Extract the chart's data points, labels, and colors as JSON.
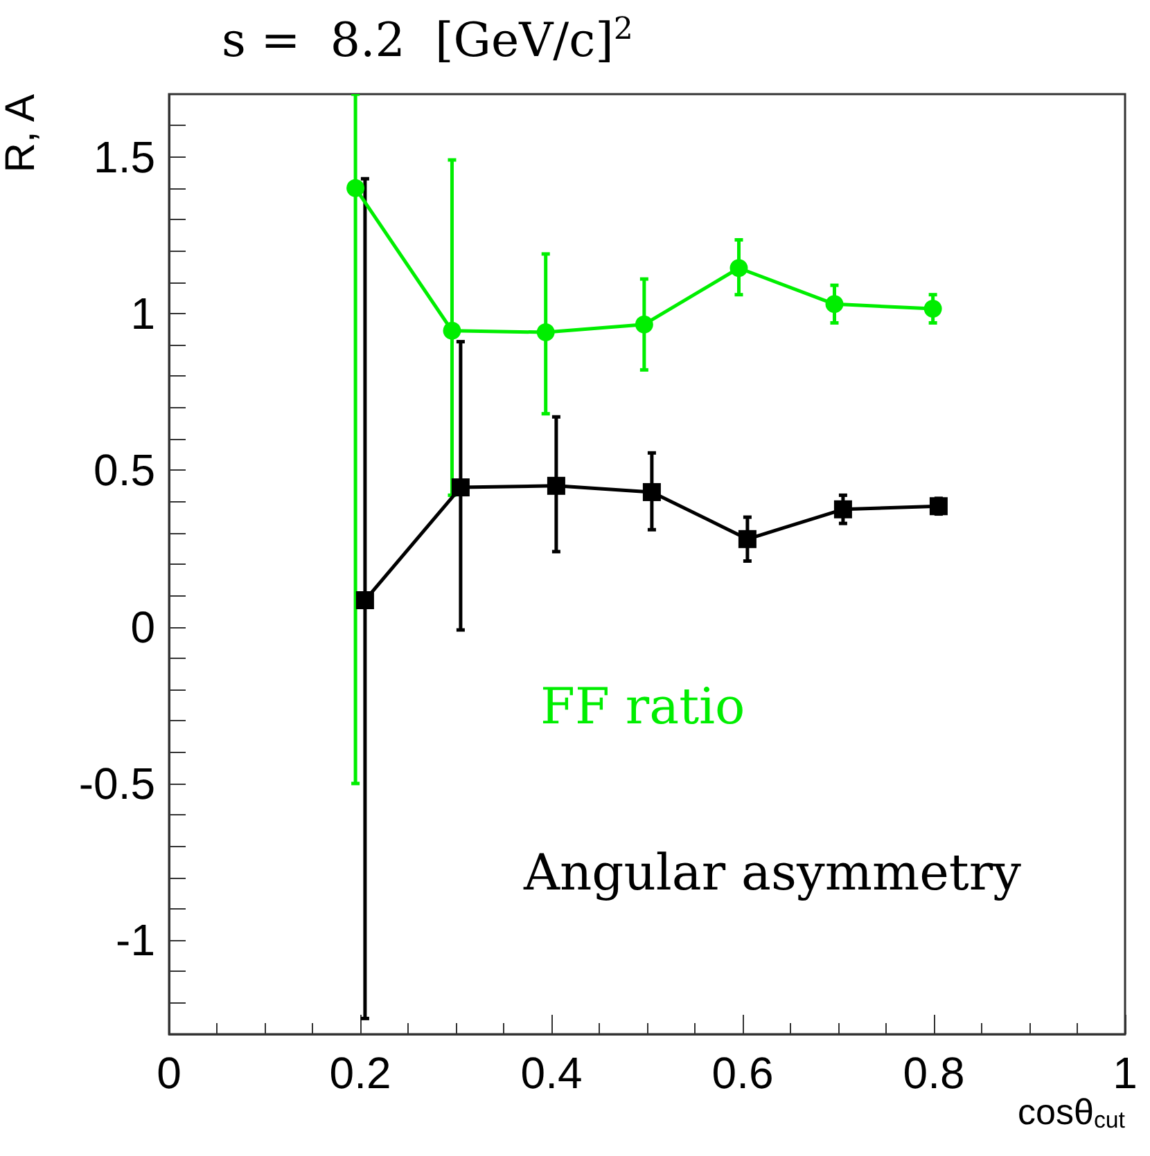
{
  "chart_data": {
    "type": "line",
    "title": "s =  8.2  [GeV/c]$^{2}$",
    "xlabel": "cosθ$_{cut}$",
    "ylabel": "R, A",
    "xlim": [
      0,
      1
    ],
    "xticks": [
      0,
      0.2,
      0.4,
      0.6,
      0.8,
      1
    ],
    "ylim": [
      -1.3,
      1.7
    ],
    "yticks": [
      {
        "value": -1.2,
        "label": null
      },
      {
        "value": -1.1,
        "label": null
      },
      -1,
      {
        "value": -0.9,
        "label": null
      },
      {
        "value": -0.8,
        "label": null
      },
      {
        "value": -0.7,
        "label": null
      },
      {
        "value": -0.6,
        "label": null
      },
      -0.5,
      {
        "value": -0.4,
        "label": null
      },
      {
        "value": -0.3,
        "label": null
      },
      {
        "value": -0.2,
        "label": null
      },
      {
        "value": -0.1,
        "label": null
      },
      0,
      {
        "value": 0.1,
        "label": null
      },
      {
        "value": 0.2,
        "label": null
      },
      {
        "value": 0.3,
        "label": null
      },
      {
        "value": 0.4,
        "label": null
      },
      0.5,
      {
        "value": 0.6,
        "label": null
      },
      {
        "value": 0.7,
        "label": null
      },
      {
        "value": 0.8,
        "label": null
      },
      {
        "value": 0.9,
        "label": null
      },
      1,
      {
        "value": 1.1,
        "label": null
      },
      {
        "value": 1.2,
        "label": null
      },
      {
        "value": 1.3,
        "label": null
      },
      {
        "value": 1.4,
        "label": null
      },
      1.5,
      {
        "value": 1.6,
        "label": null
      }
    ],
    "grid": false,
    "legend": false,
    "series": [
      {
        "name": "FF ratio",
        "color": "#00ee00",
        "marker": "circle",
        "x": [
          0.195,
          0.296,
          0.394,
          0.497,
          0.596,
          0.696,
          0.799
        ],
        "values": [
          1.4,
          0.945,
          0.94,
          0.965,
          1.145,
          1.03,
          1.015
        ],
        "errors": [
          [
            -0.5,
            1.7
          ],
          [
            0.42,
            1.49
          ],
          [
            0.68,
            1.19
          ],
          [
            0.82,
            1.11
          ],
          [
            1.06,
            1.235
          ],
          [
            0.97,
            1.09
          ],
          [
            0.97,
            1.06
          ]
        ]
      },
      {
        "name": "Angular asymmetry",
        "color": "#000000",
        "marker": "square",
        "x": [
          0.205,
          0.305,
          0.405,
          0.505,
          0.605,
          0.705,
          0.805
        ],
        "values": [
          0.085,
          0.445,
          0.45,
          0.43,
          0.28,
          0.375,
          0.385
        ],
        "errors": [
          [
            -1.25,
            1.43
          ],
          [
            -0.01,
            0.91
          ],
          [
            0.24,
            0.67
          ],
          [
            0.31,
            0.555
          ],
          [
            0.21,
            0.35
          ],
          [
            0.33,
            0.42
          ],
          [
            0.36,
            0.41
          ]
        ]
      }
    ]
  }
}
